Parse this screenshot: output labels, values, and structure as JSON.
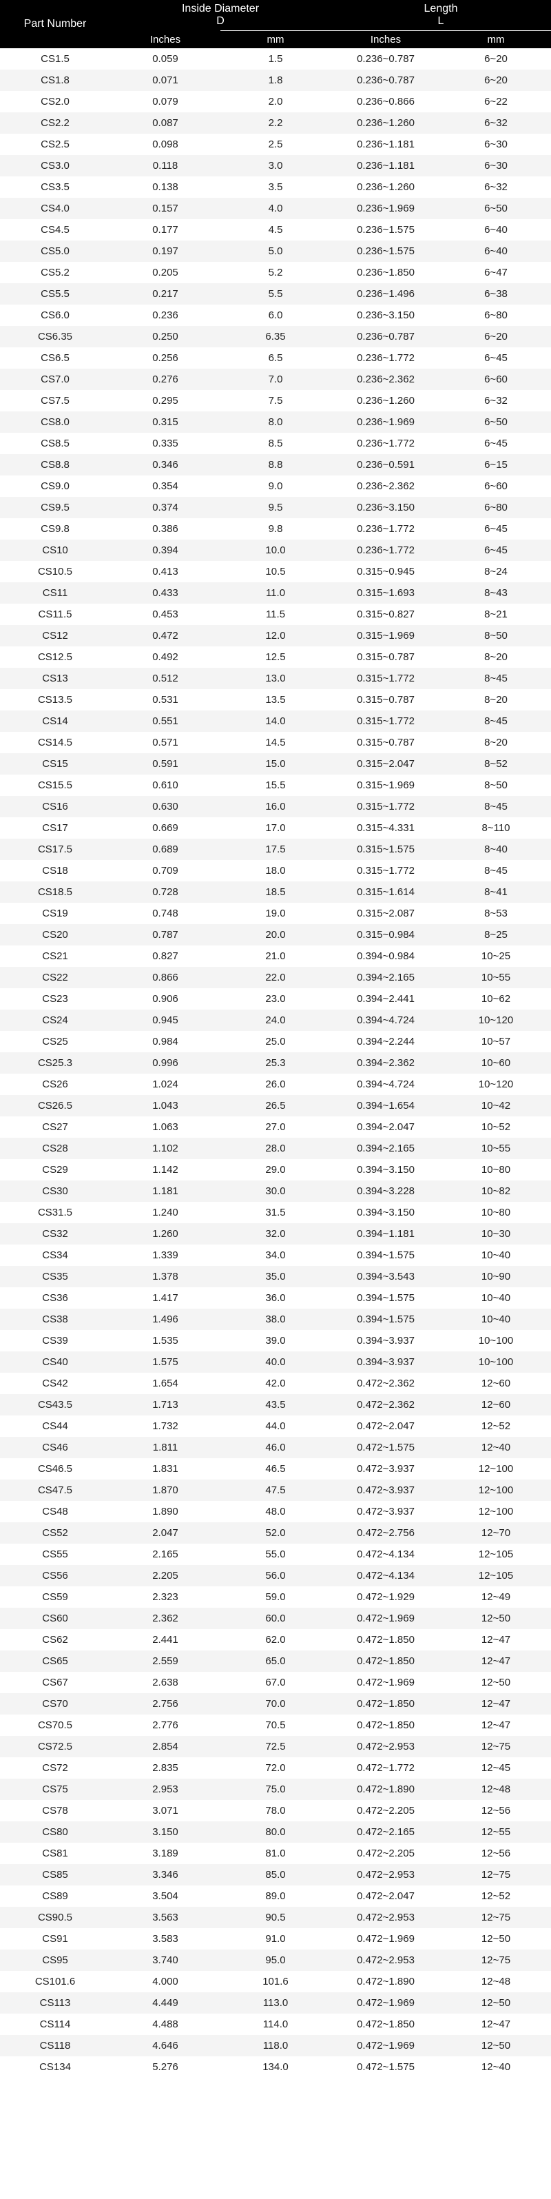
{
  "headers": {
    "part": "Part Number",
    "id_group": "Inside Diameter\nD",
    "len_group": "Length\nL",
    "inches": "Inches",
    "mm": "mm"
  },
  "rows": [
    {
      "p": "CS1.5",
      "di": "0.059",
      "dm": "1.5",
      "li": "0.236~0.787",
      "lm": "6~20"
    },
    {
      "p": "CS1.8",
      "di": "0.071",
      "dm": "1.8",
      "li": "0.236~0.787",
      "lm": "6~20"
    },
    {
      "p": "CS2.0",
      "di": "0.079",
      "dm": "2.0",
      "li": "0.236~0.866",
      "lm": "6~22"
    },
    {
      "p": "CS2.2",
      "di": "0.087",
      "dm": "2.2",
      "li": "0.236~1.260",
      "lm": "6~32"
    },
    {
      "p": "CS2.5",
      "di": "0.098",
      "dm": "2.5",
      "li": "0.236~1.181",
      "lm": "6~30"
    },
    {
      "p": "CS3.0",
      "di": "0.118",
      "dm": "3.0",
      "li": "0.236~1.181",
      "lm": "6~30"
    },
    {
      "p": "CS3.5",
      "di": "0.138",
      "dm": "3.5",
      "li": "0.236~1.260",
      "lm": "6~32"
    },
    {
      "p": "CS4.0",
      "di": "0.157",
      "dm": "4.0",
      "li": "0.236~1.969",
      "lm": "6~50"
    },
    {
      "p": "CS4.5",
      "di": "0.177",
      "dm": "4.5",
      "li": "0.236~1.575",
      "lm": "6~40"
    },
    {
      "p": "CS5.0",
      "di": "0.197",
      "dm": "5.0",
      "li": "0.236~1.575",
      "lm": "6~40"
    },
    {
      "p": "CS5.2",
      "di": "0.205",
      "dm": "5.2",
      "li": "0.236~1.850",
      "lm": "6~47"
    },
    {
      "p": "CS5.5",
      "di": "0.217",
      "dm": "5.5",
      "li": "0.236~1.496",
      "lm": "6~38"
    },
    {
      "p": "CS6.0",
      "di": "0.236",
      "dm": "6.0",
      "li": "0.236~3.150",
      "lm": "6~80"
    },
    {
      "p": "CS6.35",
      "di": "0.250",
      "dm": "6.35",
      "li": "0.236~0.787",
      "lm": "6~20"
    },
    {
      "p": "CS6.5",
      "di": "0.256",
      "dm": "6.5",
      "li": "0.236~1.772",
      "lm": "6~45"
    },
    {
      "p": "CS7.0",
      "di": "0.276",
      "dm": "7.0",
      "li": "0.236~2.362",
      "lm": "6~60"
    },
    {
      "p": "CS7.5",
      "di": "0.295",
      "dm": "7.5",
      "li": "0.236~1.260",
      "lm": "6~32"
    },
    {
      "p": "CS8.0",
      "di": "0.315",
      "dm": "8.0",
      "li": "0.236~1.969",
      "lm": "6~50"
    },
    {
      "p": "CS8.5",
      "di": "0.335",
      "dm": "8.5",
      "li": "0.236~1.772",
      "lm": "6~45"
    },
    {
      "p": "CS8.8",
      "di": "0.346",
      "dm": "8.8",
      "li": "0.236~0.591",
      "lm": "6~15"
    },
    {
      "p": "CS9.0",
      "di": "0.354",
      "dm": "9.0",
      "li": "0.236~2.362",
      "lm": "6~60"
    },
    {
      "p": "CS9.5",
      "di": "0.374",
      "dm": "9.5",
      "li": "0.236~3.150",
      "lm": "6~80"
    },
    {
      "p": "CS9.8",
      "di": "0.386",
      "dm": "9.8",
      "li": "0.236~1.772",
      "lm": "6~45"
    },
    {
      "p": "CS10",
      "di": "0.394",
      "dm": "10.0",
      "li": "0.236~1.772",
      "lm": "6~45"
    },
    {
      "p": "CS10.5",
      "di": "0.413",
      "dm": "10.5",
      "li": "0.315~0.945",
      "lm": "8~24"
    },
    {
      "p": "CS11",
      "di": "0.433",
      "dm": "11.0",
      "li": "0.315~1.693",
      "lm": "8~43"
    },
    {
      "p": "CS11.5",
      "di": "0.453",
      "dm": "11.5",
      "li": "0.315~0.827",
      "lm": "8~21"
    },
    {
      "p": "CS12",
      "di": "0.472",
      "dm": "12.0",
      "li": "0.315~1.969",
      "lm": "8~50"
    },
    {
      "p": "CS12.5",
      "di": "0.492",
      "dm": "12.5",
      "li": "0.315~0.787",
      "lm": "8~20"
    },
    {
      "p": "CS13",
      "di": "0.512",
      "dm": "13.0",
      "li": "0.315~1.772",
      "lm": "8~45"
    },
    {
      "p": "CS13.5",
      "di": "0.531",
      "dm": "13.5",
      "li": "0.315~0.787",
      "lm": "8~20"
    },
    {
      "p": "CS14",
      "di": "0.551",
      "dm": "14.0",
      "li": "0.315~1.772",
      "lm": "8~45"
    },
    {
      "p": "CS14.5",
      "di": "0.571",
      "dm": "14.5",
      "li": "0.315~0.787",
      "lm": "8~20"
    },
    {
      "p": "CS15",
      "di": "0.591",
      "dm": "15.0",
      "li": "0.315~2.047",
      "lm": "8~52"
    },
    {
      "p": "CS15.5",
      "di": "0.610",
      "dm": "15.5",
      "li": "0.315~1.969",
      "lm": "8~50"
    },
    {
      "p": "CS16",
      "di": "0.630",
      "dm": "16.0",
      "li": "0.315~1.772",
      "lm": "8~45"
    },
    {
      "p": "CS17",
      "di": "0.669",
      "dm": "17.0",
      "li": "0.315~4.331",
      "lm": "8~110"
    },
    {
      "p": "CS17.5",
      "di": "0.689",
      "dm": "17.5",
      "li": "0.315~1.575",
      "lm": "8~40"
    },
    {
      "p": "CS18",
      "di": "0.709",
      "dm": "18.0",
      "li": "0.315~1.772",
      "lm": "8~45"
    },
    {
      "p": "CS18.5",
      "di": "0.728",
      "dm": "18.5",
      "li": "0.315~1.614",
      "lm": "8~41"
    },
    {
      "p": "CS19",
      "di": "0.748",
      "dm": "19.0",
      "li": "0.315~2.087",
      "lm": "8~53"
    },
    {
      "p": "CS20",
      "di": "0.787",
      "dm": "20.0",
      "li": "0.315~0.984",
      "lm": "8~25"
    },
    {
      "p": "CS21",
      "di": "0.827",
      "dm": "21.0",
      "li": "0.394~0.984",
      "lm": "10~25"
    },
    {
      "p": "CS22",
      "di": "0.866",
      "dm": "22.0",
      "li": "0.394~2.165",
      "lm": "10~55"
    },
    {
      "p": "CS23",
      "di": "0.906",
      "dm": "23.0",
      "li": "0.394~2.441",
      "lm": "10~62"
    },
    {
      "p": "CS24",
      "di": "0.945",
      "dm": "24.0",
      "li": "0.394~4.724",
      "lm": "10~120"
    },
    {
      "p": "CS25",
      "di": "0.984",
      "dm": "25.0",
      "li": "0.394~2.244",
      "lm": "10~57"
    },
    {
      "p": "CS25.3",
      "di": "0.996",
      "dm": "25.3",
      "li": "0.394~2.362",
      "lm": "10~60"
    },
    {
      "p": "CS26",
      "di": "1.024",
      "dm": "26.0",
      "li": "0.394~4.724",
      "lm": "10~120"
    },
    {
      "p": "CS26.5",
      "di": "1.043",
      "dm": "26.5",
      "li": "0.394~1.654",
      "lm": "10~42"
    },
    {
      "p": "CS27",
      "di": "1.063",
      "dm": "27.0",
      "li": "0.394~2.047",
      "lm": "10~52"
    },
    {
      "p": "CS28",
      "di": "1.102",
      "dm": "28.0",
      "li": "0.394~2.165",
      "lm": "10~55"
    },
    {
      "p": "CS29",
      "di": "1.142",
      "dm": "29.0",
      "li": "0.394~3.150",
      "lm": "10~80"
    },
    {
      "p": "CS30",
      "di": "1.181",
      "dm": "30.0",
      "li": "0.394~3.228",
      "lm": "10~82"
    },
    {
      "p": "CS31.5",
      "di": "1.240",
      "dm": "31.5",
      "li": "0.394~3.150",
      "lm": "10~80"
    },
    {
      "p": "CS32",
      "di": "1.260",
      "dm": "32.0",
      "li": "0.394~1.181",
      "lm": "10~30"
    },
    {
      "p": "CS34",
      "di": "1.339",
      "dm": "34.0",
      "li": "0.394~1.575",
      "lm": "10~40"
    },
    {
      "p": "CS35",
      "di": "1.378",
      "dm": "35.0",
      "li": "0.394~3.543",
      "lm": "10~90"
    },
    {
      "p": "CS36",
      "di": "1.417",
      "dm": "36.0",
      "li": "0.394~1.575",
      "lm": "10~40"
    },
    {
      "p": "CS38",
      "di": "1.496",
      "dm": "38.0",
      "li": "0.394~1.575",
      "lm": "10~40"
    },
    {
      "p": "CS39",
      "di": "1.535",
      "dm": "39.0",
      "li": "0.394~3.937",
      "lm": "10~100"
    },
    {
      "p": "CS40",
      "di": "1.575",
      "dm": "40.0",
      "li": "0.394~3.937",
      "lm": "10~100"
    },
    {
      "p": "CS42",
      "di": "1.654",
      "dm": "42.0",
      "li": "0.472~2.362",
      "lm": "12~60"
    },
    {
      "p": "CS43.5",
      "di": "1.713",
      "dm": "43.5",
      "li": "0.472~2.362",
      "lm": "12~60"
    },
    {
      "p": "CS44",
      "di": "1.732",
      "dm": "44.0",
      "li": "0.472~2.047",
      "lm": "12~52"
    },
    {
      "p": "CS46",
      "di": "1.811",
      "dm": "46.0",
      "li": "0.472~1.575",
      "lm": "12~40"
    },
    {
      "p": "CS46.5",
      "di": "1.831",
      "dm": "46.5",
      "li": "0.472~3.937",
      "lm": "12~100"
    },
    {
      "p": "CS47.5",
      "di": "1.870",
      "dm": "47.5",
      "li": "0.472~3.937",
      "lm": "12~100"
    },
    {
      "p": "CS48",
      "di": "1.890",
      "dm": "48.0",
      "li": "0.472~3.937",
      "lm": "12~100"
    },
    {
      "p": "CS52",
      "di": "2.047",
      "dm": "52.0",
      "li": "0.472~2.756",
      "lm": "12~70"
    },
    {
      "p": "CS55",
      "di": "2.165",
      "dm": "55.0",
      "li": "0.472~4.134",
      "lm": "12~105"
    },
    {
      "p": "CS56",
      "di": "2.205",
      "dm": "56.0",
      "li": "0.472~4.134",
      "lm": "12~105"
    },
    {
      "p": "CS59",
      "di": "2.323",
      "dm": "59.0",
      "li": "0.472~1.929",
      "lm": "12~49"
    },
    {
      "p": "CS60",
      "di": "2.362",
      "dm": "60.0",
      "li": "0.472~1.969",
      "lm": "12~50"
    },
    {
      "p": "CS62",
      "di": "2.441",
      "dm": "62.0",
      "li": "0.472~1.850",
      "lm": "12~47"
    },
    {
      "p": "CS65",
      "di": "2.559",
      "dm": "65.0",
      "li": "0.472~1.850",
      "lm": "12~47"
    },
    {
      "p": "CS67",
      "di": "2.638",
      "dm": "67.0",
      "li": "0.472~1.969",
      "lm": "12~50"
    },
    {
      "p": "CS70",
      "di": "2.756",
      "dm": "70.0",
      "li": "0.472~1.850",
      "lm": "12~47"
    },
    {
      "p": "CS70.5",
      "di": "2.776",
      "dm": "70.5",
      "li": "0.472~1.850",
      "lm": "12~47"
    },
    {
      "p": "CS72.5",
      "di": "2.854",
      "dm": "72.5",
      "li": "0.472~2.953",
      "lm": "12~75"
    },
    {
      "p": "CS72",
      "di": "2.835",
      "dm": "72.0",
      "li": "0.472~1.772",
      "lm": "12~45"
    },
    {
      "p": "CS75",
      "di": "2.953",
      "dm": "75.0",
      "li": "0.472~1.890",
      "lm": "12~48"
    },
    {
      "p": "CS78",
      "di": "3.071",
      "dm": "78.0",
      "li": "0.472~2.205",
      "lm": "12~56"
    },
    {
      "p": "CS80",
      "di": "3.150",
      "dm": "80.0",
      "li": "0.472~2.165",
      "lm": "12~55"
    },
    {
      "p": "CS81",
      "di": "3.189",
      "dm": "81.0",
      "li": "0.472~2.205",
      "lm": "12~56"
    },
    {
      "p": "CS85",
      "di": "3.346",
      "dm": "85.0",
      "li": "0.472~2.953",
      "lm": "12~75"
    },
    {
      "p": "CS89",
      "di": "3.504",
      "dm": "89.0",
      "li": "0.472~2.047",
      "lm": "12~52"
    },
    {
      "p": "CS90.5",
      "di": "3.563",
      "dm": "90.5",
      "li": "0.472~2.953",
      "lm": "12~75"
    },
    {
      "p": "CS91",
      "di": "3.583",
      "dm": "91.0",
      "li": "0.472~1.969",
      "lm": "12~50"
    },
    {
      "p": "CS95",
      "di": "3.740",
      "dm": "95.0",
      "li": "0.472~2.953",
      "lm": "12~75"
    },
    {
      "p": "CS101.6",
      "di": "4.000",
      "dm": "101.6",
      "li": "0.472~1.890",
      "lm": "12~48"
    },
    {
      "p": "CS113",
      "di": "4.449",
      "dm": "113.0",
      "li": "0.472~1.969",
      "lm": "12~50"
    },
    {
      "p": "CS114",
      "di": "4.488",
      "dm": "114.0",
      "li": "0.472~1.850",
      "lm": "12~47"
    },
    {
      "p": "CS118",
      "di": "4.646",
      "dm": "118.0",
      "li": "0.472~1.969",
      "lm": "12~50"
    },
    {
      "p": "CS134",
      "di": "5.276",
      "dm": "134.0",
      "li": "0.472~1.575",
      "lm": "12~40"
    }
  ]
}
